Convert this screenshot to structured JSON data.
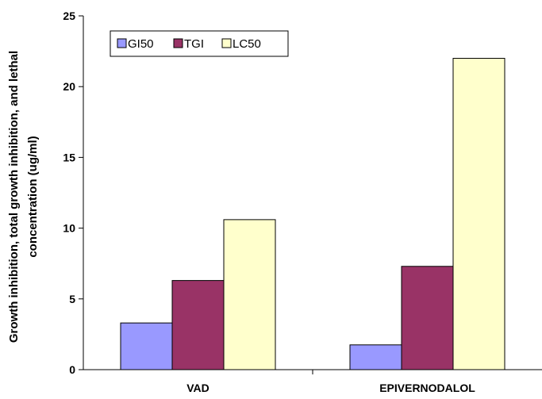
{
  "chart_data": {
    "type": "bar",
    "title": "",
    "xlabel": "",
    "ylabel_lines": [
      "Growth inhibition, total growth inhibition, and lethal",
      "concentration (ug/ml)"
    ],
    "categories": [
      "VAD",
      "EPIVERNODALOL"
    ],
    "series": [
      {
        "name": "GI50",
        "values": [
          3.3,
          1.75
        ],
        "color": "#9999ff"
      },
      {
        "name": "TGI",
        "values": [
          6.3,
          7.3
        ],
        "color": "#993366"
      },
      {
        "name": "LC50",
        "values": [
          10.6,
          22.0
        ],
        "color": "#ffffcc"
      }
    ],
    "ylim": [
      0,
      25
    ],
    "yticks": [
      "0",
      "5",
      "10",
      "15",
      "20",
      "25"
    ],
    "grid": false,
    "legend_position": "top-left"
  }
}
